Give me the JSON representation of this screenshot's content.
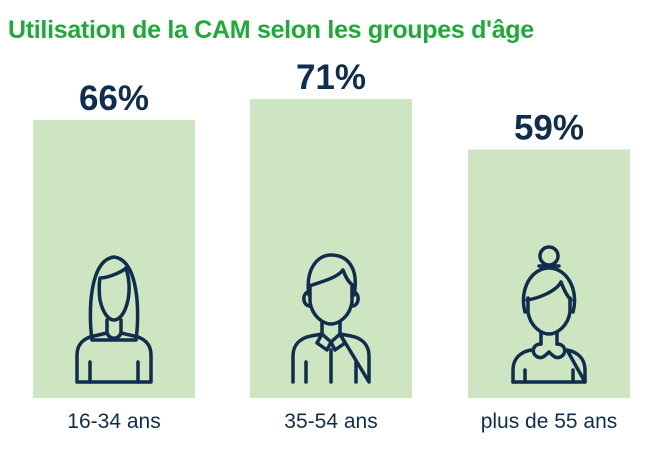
{
  "colors": {
    "title": "#1faa38",
    "bar": "#cde5c0",
    "text_dark": "#0f2d4c",
    "icon": "#0f2d4c"
  },
  "chart_data": {
    "type": "bar",
    "title": "Utilisation de la CAM selon les groupes d'âge",
    "categories": [
      "16-34 ans",
      "35-54 ans",
      "plus de 55 ans"
    ],
    "values": [
      66,
      71,
      59
    ],
    "value_labels": [
      "66%",
      "71%",
      "59%"
    ],
    "unit": "%",
    "icons": [
      "young-woman-icon",
      "man-icon",
      "older-woman-icon"
    ],
    "xlabel": "",
    "ylabel": "",
    "grid": false
  }
}
